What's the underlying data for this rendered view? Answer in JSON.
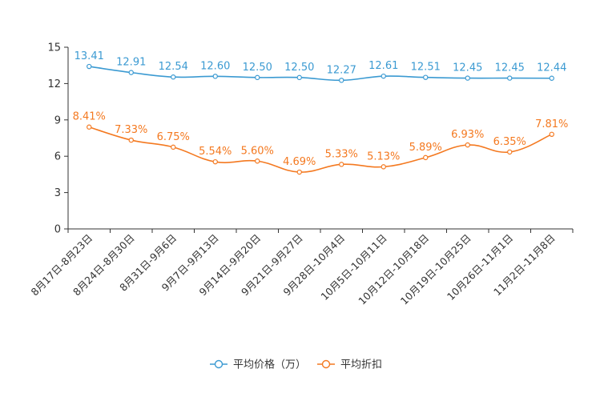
{
  "chart_data": {
    "type": "line",
    "title": "",
    "xlabel": "",
    "ylabel": "",
    "ylim": [
      0,
      15
    ],
    "yticks": [
      "0",
      "3",
      "6",
      "9",
      "12",
      "15"
    ],
    "categories": [
      "8月17日-8月23日",
      "8月24日-8月30日",
      "8月31日-9月6日",
      "9月7日-9月13日",
      "9月14日-9月20日",
      "9月21日-9月27日",
      "9月28日-10月4日",
      "10月5日-10月11日",
      "10月12日-10月18日",
      "10月19日-10月25日",
      "10月26日-11月1日",
      "11月2日-11月8日"
    ],
    "series": [
      {
        "name": "平均价格（万）",
        "color": "#3b9ad2",
        "values": [
          13.41,
          12.91,
          12.54,
          12.6,
          12.5,
          12.5,
          12.27,
          12.61,
          12.51,
          12.45,
          12.45,
          12.44
        ],
        "labels": [
          "13.41",
          "12.91",
          "12.54",
          "12.60",
          "12.50",
          "12.50",
          "12.27",
          "12.61",
          "12.51",
          "12.45",
          "12.45",
          "12.44"
        ]
      },
      {
        "name": "平均折扣",
        "color": "#f47920",
        "values": [
          8.41,
          7.33,
          6.75,
          5.54,
          5.6,
          4.69,
          5.33,
          5.13,
          5.89,
          6.93,
          6.35,
          7.81
        ],
        "labels": [
          "8.41%",
          "7.33%",
          "6.75%",
          "5.54%",
          "5.60%",
          "4.69%",
          "5.33%",
          "5.13%",
          "5.89%",
          "6.93%",
          "6.35%",
          "7.81%"
        ]
      }
    ],
    "legend_position": "bottom-center"
  }
}
